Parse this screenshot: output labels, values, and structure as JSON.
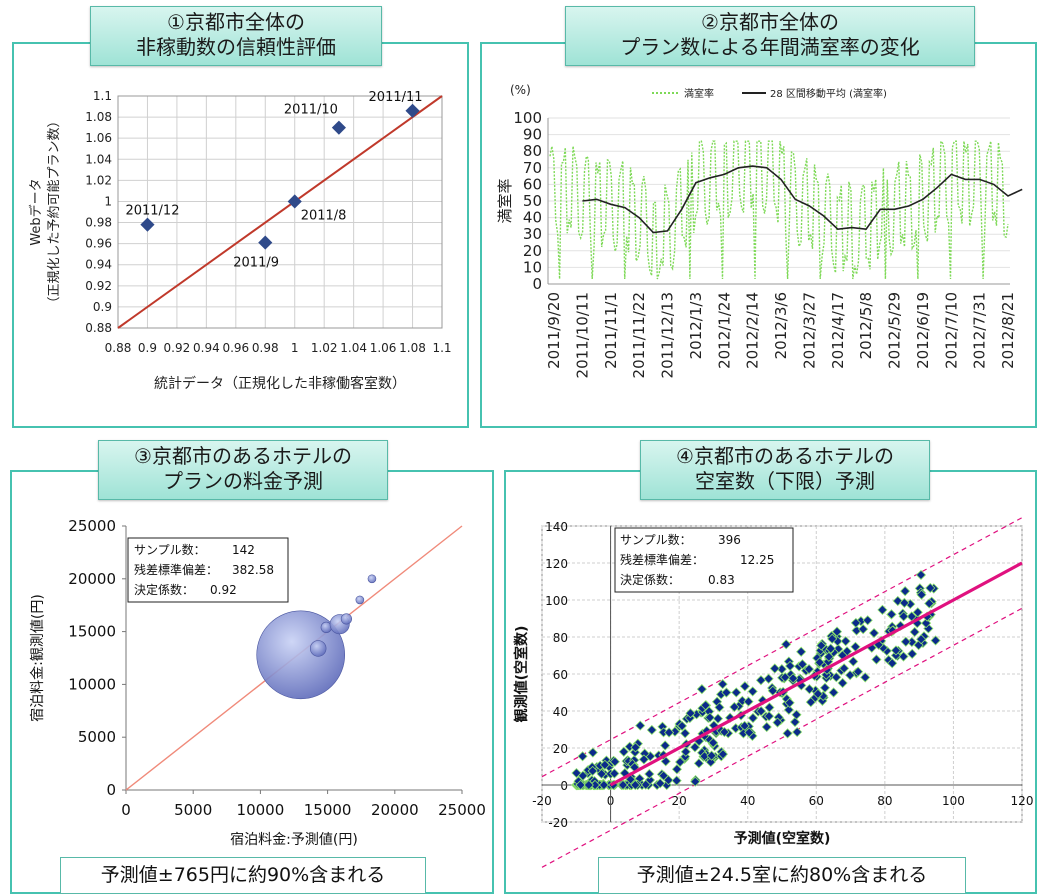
{
  "panels": [
    {
      "title_line1": "①京都市全体の",
      "title_line2": "非稼動数の信頼性評価"
    },
    {
      "title_line1": "②京都市全体の",
      "title_line2": "プラン数による年間満室率の変化"
    },
    {
      "title_line1": "③京都市のあるホテルの",
      "title_line2": "プランの料金予測"
    },
    {
      "title_line1": "④京都市のあるホテルの",
      "title_line2": "空室数（下限）予測"
    }
  ],
  "footers": {
    "p3": "予測値±765円に約90%含まれる",
    "p4": "予測値±24.5室に約80%含まれる"
  },
  "colors": {
    "teal": "#46c2b0",
    "red_line": "#c0392b",
    "diamond": "#2f4a8a",
    "green_dotted": "#7ed957",
    "magenta": "#e0117f",
    "bubble": "#7f8fd6"
  },
  "chart_data": [
    {
      "type": "scatter",
      "xlabel": "統計データ（正規化した非稼働客室数）",
      "ylabel_line1": "Webデータ",
      "ylabel_line2": "（正規化した予約可能プラン数）",
      "xlim": [
        0.88,
        1.1
      ],
      "ylim": [
        0.88,
        1.1
      ],
      "x_ticks": [
        "0.88",
        "0.9",
        "0.92",
        "0.94",
        "0.96",
        "0.98",
        "1",
        "1.02",
        "1.04",
        "1.06",
        "1.08",
        "1.1"
      ],
      "y_ticks": [
        "1.1",
        "1.08",
        "1.06",
        "1.04",
        "1.02",
        "1",
        "0.98",
        "0.96",
        "0.94",
        "0.92",
        "0.9",
        "0.88"
      ],
      "points": [
        {
          "x": 0.9,
          "y": 0.978,
          "label": "2011/12"
        },
        {
          "x": 0.98,
          "y": 0.961,
          "label": "2011/9"
        },
        {
          "x": 1.0,
          "y": 1.0,
          "label": "2011/8"
        },
        {
          "x": 1.03,
          "y": 1.07,
          "label": "2011/10"
        },
        {
          "x": 1.08,
          "y": 1.086,
          "label": "2011/11"
        }
      ],
      "reference_line": "y = x"
    },
    {
      "type": "line",
      "unit": "(%)",
      "ylabel": "満室率",
      "ylim": [
        0,
        100
      ],
      "y_ticks": [
        "100",
        "90",
        "80",
        "70",
        "60",
        "50",
        "40",
        "30",
        "20",
        "10",
        "0"
      ],
      "legend": {
        "series1": "満室率",
        "series2": "28 区間移動平均 (満室率)"
      },
      "x_ticks": [
        "2011/9/20",
        "2011/10/11",
        "2011/11/1",
        "2011/11/22",
        "2011/12/13",
        "2012/1/3",
        "2012/1/24",
        "2012/2/14",
        "2012/3/6",
        "2012/3/27",
        "2012/4/17",
        "2012/5/8",
        "2012/5/29",
        "2012/6/19",
        "2012/7/10",
        "2012/7/31",
        "2012/8/21"
      ],
      "moving_average": [
        {
          "x": "2011/10/11",
          "y": 50
        },
        {
          "x": "2011/10/21",
          "y": 51
        },
        {
          "x": "2011/11/1",
          "y": 48
        },
        {
          "x": "2011/11/11",
          "y": 46
        },
        {
          "x": "2011/11/22",
          "y": 40
        },
        {
          "x": "2011/12/2",
          "y": 31
        },
        {
          "x": "2011/12/13",
          "y": 32
        },
        {
          "x": "2011/12/23",
          "y": 45
        },
        {
          "x": "2012/1/3",
          "y": 61
        },
        {
          "x": "2012/1/13",
          "y": 64
        },
        {
          "x": "2012/1/24",
          "y": 66
        },
        {
          "x": "2012/2/3",
          "y": 70
        },
        {
          "x": "2012/2/14",
          "y": 71
        },
        {
          "x": "2012/2/24",
          "y": 70
        },
        {
          "x": "2012/3/6",
          "y": 63
        },
        {
          "x": "2012/3/16",
          "y": 51
        },
        {
          "x": "2012/3/27",
          "y": 47
        },
        {
          "x": "2012/4/6",
          "y": 41
        },
        {
          "x": "2012/4/17",
          "y": 33
        },
        {
          "x": "2012/4/27",
          "y": 34
        },
        {
          "x": "2012/5/8",
          "y": 33
        },
        {
          "x": "2012/5/18",
          "y": 45
        },
        {
          "x": "2012/5/29",
          "y": 45
        },
        {
          "x": "2012/6/8",
          "y": 47
        },
        {
          "x": "2012/6/19",
          "y": 51
        },
        {
          "x": "2012/6/29",
          "y": 58
        },
        {
          "x": "2012/7/10",
          "y": 66
        },
        {
          "x": "2012/7/20",
          "y": 63
        },
        {
          "x": "2012/7/31",
          "y": 63
        },
        {
          "x": "2012/8/10",
          "y": 60
        },
        {
          "x": "2012/8/21",
          "y": 53
        },
        {
          "x": "2012/8/31",
          "y": 57
        }
      ]
    },
    {
      "type": "scatter",
      "bubble": true,
      "xlabel": "宿泊料金:予測値(円)",
      "ylabel": "宿泊料金:観測値(円)",
      "xlim": [
        0,
        25000
      ],
      "ylim": [
        0,
        25000
      ],
      "x_ticks": [
        "0",
        "5000",
        "10000",
        "15000",
        "20000",
        "25000"
      ],
      "y_ticks": [
        "25000",
        "20000",
        "15000",
        "10000",
        "5000",
        "0"
      ],
      "stats": {
        "n_label": "サンプル数：",
        "n": "142",
        "sd_label": "残差標準偏差：",
        "sd": "382.58",
        "r2_label": "決定係数：",
        "r2": "0.92"
      },
      "bubbles": [
        {
          "x": 13000,
          "y": 12800,
          "size": 1.0
        },
        {
          "x": 14300,
          "y": 13400,
          "size": 0.18
        },
        {
          "x": 14900,
          "y": 15400,
          "size": 0.12
        },
        {
          "x": 15900,
          "y": 15700,
          "size": 0.22
        },
        {
          "x": 16400,
          "y": 16200,
          "size": 0.12
        },
        {
          "x": 17400,
          "y": 18000,
          "size": 0.07
        },
        {
          "x": 18300,
          "y": 20000,
          "size": 0.06
        }
      ],
      "reference_line": "y = x"
    },
    {
      "type": "scatter",
      "xlabel": "予測値(空室数)",
      "ylabel": "観測値(空室数)",
      "xlim": [
        -20,
        120
      ],
      "ylim": [
        -20,
        140
      ],
      "x_ticks": [
        "-20",
        "0",
        "20",
        "40",
        "60",
        "80",
        "100",
        "120"
      ],
      "y_ticks": [
        "140",
        "120",
        "100",
        "80",
        "60",
        "40",
        "20",
        "0",
        "-20"
      ],
      "stats": {
        "n_label": "サンプル数：",
        "n": "396",
        "sd_label": "残差標準偏差：",
        "sd": "12.25",
        "r2_label": "決定係数：",
        "r2": "0.83"
      },
      "fit_line": "y = x",
      "band_offset": 24.5
    }
  ]
}
